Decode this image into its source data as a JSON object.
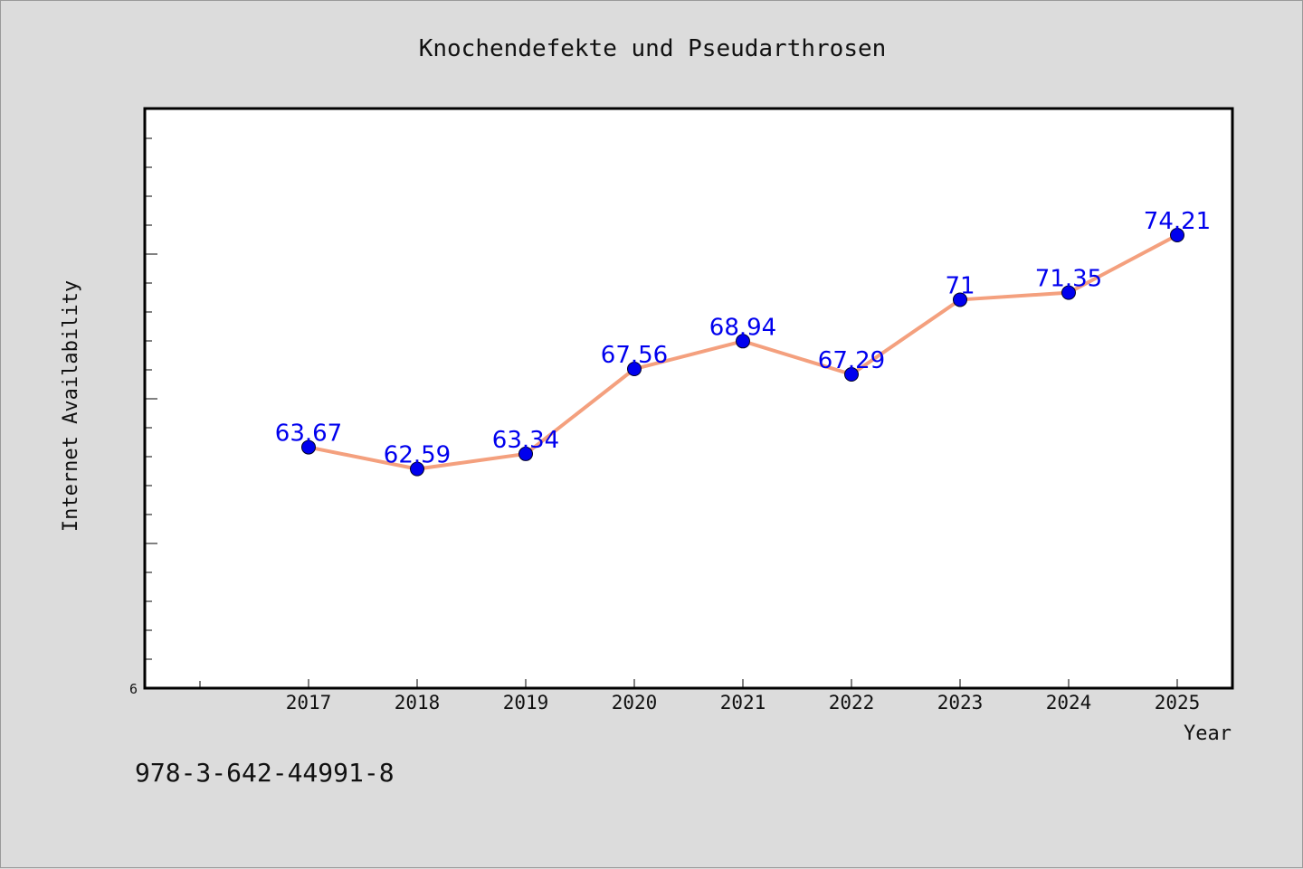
{
  "chart_data": {
    "type": "line",
    "title": "Knochendefekte und Pseudarthrosen",
    "xlabel": "Year",
    "ylabel": "Internet Availability",
    "categories": [
      "2017",
      "2018",
      "2019",
      "2020",
      "2021",
      "2022",
      "2023",
      "2024",
      "2025"
    ],
    "series": [
      {
        "values": [
          63.67,
          62.59,
          63.34,
          67.56,
          68.94,
          67.29,
          71,
          71.35,
          74.21
        ],
        "labels": [
          "63.67",
          "62.59",
          "63.34",
          "67.56",
          "68.94",
          "67.29",
          "71",
          "71.35",
          "74.21"
        ],
        "line_color": "#f4a07e",
        "marker_color": "#0000ee"
      }
    ],
    "ylim": [
      51.7,
      80.5
    ],
    "y_tick_labels": [
      "6"
    ],
    "grid": false,
    "label_color": "#0000ee"
  },
  "footer": {
    "isbn": "978-3-642-44991-8"
  }
}
